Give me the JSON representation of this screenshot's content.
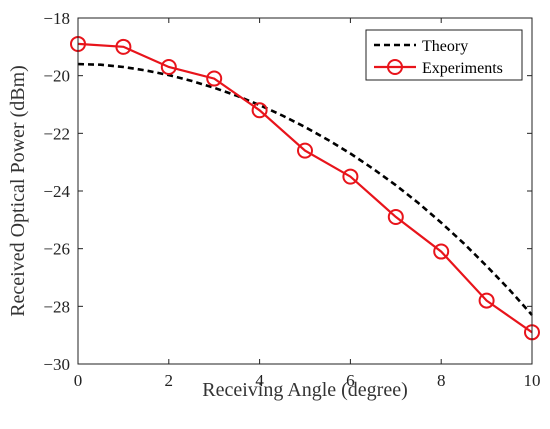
{
  "chart_data": {
    "type": "line",
    "xlabel": "Receiving Angle (degree)",
    "ylabel": "Received Optical Power (dBm)",
    "xlim": [
      0,
      10
    ],
    "ylim": [
      -30,
      -18
    ],
    "xticks": [
      0,
      2,
      4,
      6,
      8,
      10
    ],
    "yticks": [
      -18,
      -20,
      -22,
      -24,
      -26,
      -28,
      -30
    ],
    "xtick_labels": [
      "0",
      "2",
      "4",
      "6",
      "8",
      "10"
    ],
    "ytick_labels": [
      "−18",
      "−20",
      "−22",
      "−24",
      "−26",
      "−28",
      "−30"
    ],
    "grid": false,
    "legend_position": "top-right",
    "series": [
      {
        "name": "Theory",
        "style": "dashed",
        "color": "#000000",
        "x": [
          0,
          0.5,
          1,
          1.5,
          2,
          2.5,
          3,
          3.5,
          4,
          4.5,
          5,
          5.5,
          6,
          6.5,
          7,
          7.5,
          8,
          8.5,
          9,
          9.5,
          10
        ],
        "y": [
          -19.6,
          -19.62,
          -19.7,
          -19.82,
          -19.98,
          -20.18,
          -20.42,
          -20.7,
          -21.02,
          -21.38,
          -21.78,
          -22.22,
          -22.7,
          -23.23,
          -23.8,
          -24.42,
          -25.1,
          -25.82,
          -26.6,
          -27.42,
          -28.3
        ]
      },
      {
        "name": "Experiments",
        "style": "solid-circle-markers",
        "color": "#e8141b",
        "x": [
          0,
          1,
          2,
          3,
          4,
          5,
          6,
          7,
          8,
          9,
          10
        ],
        "y": [
          -18.9,
          -19.0,
          -19.7,
          -20.1,
          -21.2,
          -22.6,
          -23.5,
          -24.9,
          -26.1,
          -27.8,
          -28.9
        ]
      }
    ]
  }
}
